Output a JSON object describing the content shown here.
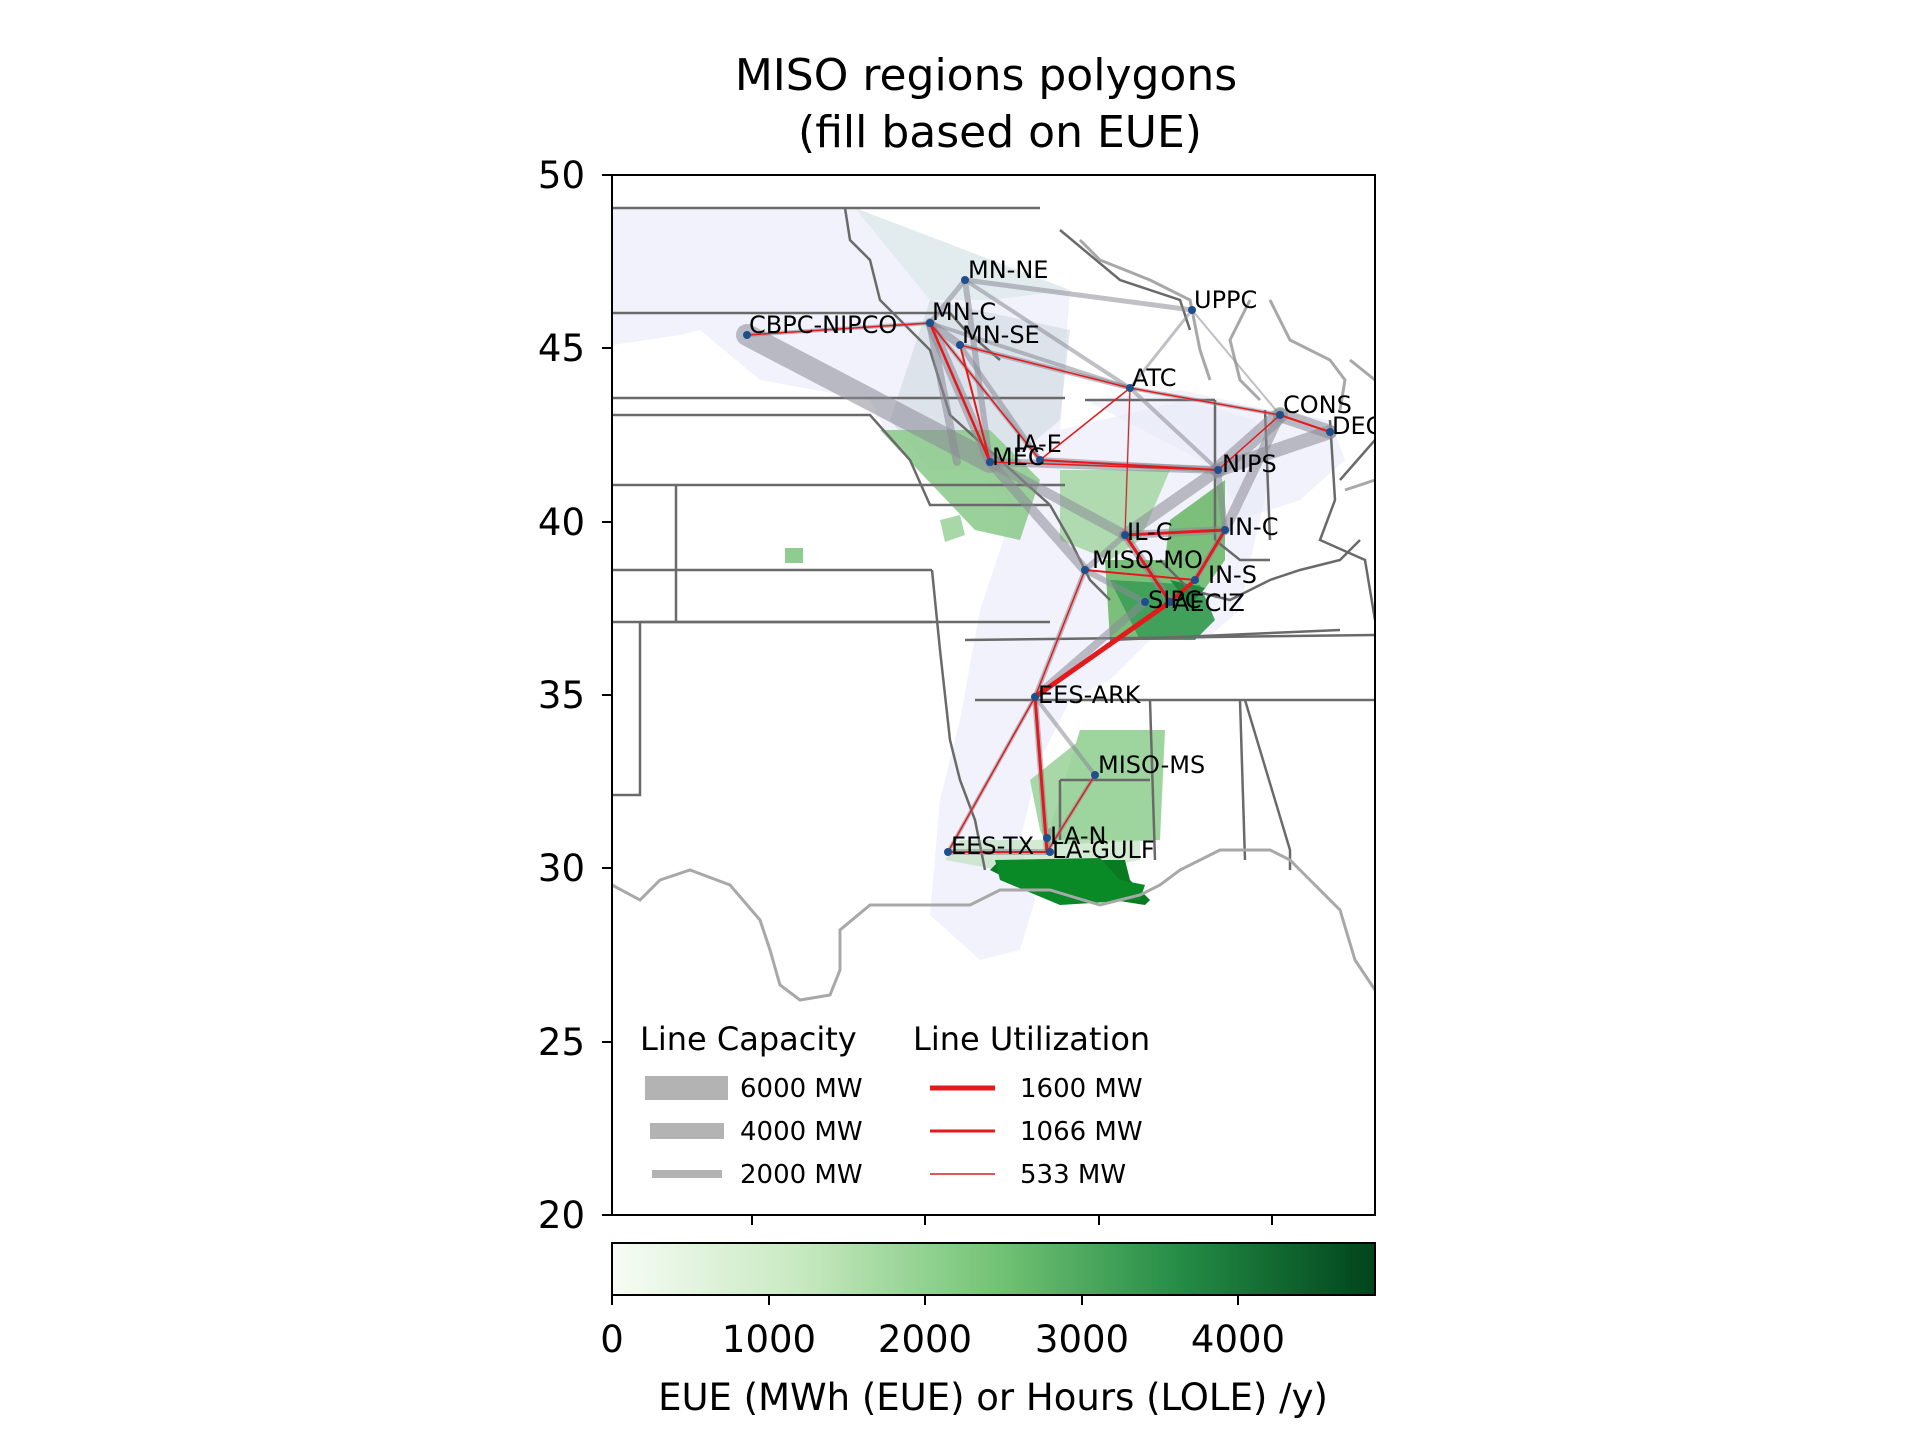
{
  "title_line1": "MISO regions polygons",
  "title_line2": "(fill based on EUE)",
  "y_ticks": [
    "50",
    "45",
    "40",
    "35",
    "30",
    "25",
    "20"
  ],
  "colorbar": {
    "ticks": [
      "0",
      "1000",
      "2000",
      "3000",
      "4000"
    ],
    "label": "EUE (MWh (EUE) or Hours (LOLE) /y)",
    "colors": [
      "#f7fcf5",
      "#c7e9c0",
      "#74c476",
      "#238b45",
      "#00441b"
    ]
  },
  "legend": {
    "capacity_title": "Line Capacity",
    "capacity_items": [
      "6000 MW",
      "4000 MW",
      "2000 MW"
    ],
    "utilization_title": "Line Utilization",
    "utilization_items": [
      "1600 MW",
      "1066 MW",
      "533 MW"
    ],
    "capacity_color": "#b3b3b3",
    "utilization_color": "#e31a1c"
  },
  "nodes": [
    "MN-NE",
    "UPPC",
    "MN-C",
    "CBPC-NIPCO",
    "MN-SE",
    "ATC",
    "CONS",
    "DECO",
    "IA-E",
    "MEC",
    "NIPS",
    "IL-C",
    "IN-C",
    "MISO-MO",
    "IN-S",
    "SIPC",
    "AECIZ",
    "EES-ARK",
    "MISO-MS",
    "LA-N",
    "EES-TX",
    "LA-GULF"
  ],
  "chart_data": {
    "type": "map",
    "ylim": [
      20,
      50
    ],
    "colorbar_range": [
      0,
      4900
    ]
  }
}
